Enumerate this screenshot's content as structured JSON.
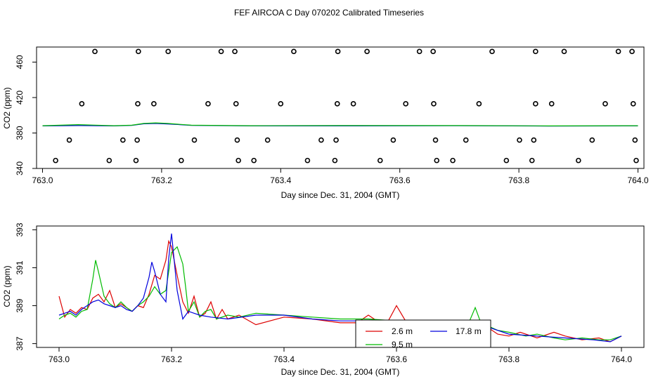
{
  "figure": {
    "title": "FEF AIRCOA C  Day 070202  Calibrated Timeseries"
  },
  "colors": {
    "line_2_6m": "#dd0000",
    "line_9_5m": "#00bb00",
    "line_17_8m": "#0000dd",
    "axis": "#000000"
  },
  "chart_data": [
    {
      "type": "scatter",
      "title": "",
      "xlabel": "Day since Dec. 31, 2004 (GMT)",
      "ylabel": "CO2 (ppm)",
      "xlim": [
        762.99,
        764.01
      ],
      "ylim": [
        340,
        477
      ],
      "xticks": [
        763.0,
        763.2,
        763.4,
        763.6,
        763.8,
        764.0
      ],
      "xtick_labels": [
        "763.0",
        "763.2",
        "763.4",
        "763.6",
        "763.8",
        "764.0"
      ],
      "yticks": [
        340,
        380,
        420,
        460
      ],
      "ytick_labels": [
        "340",
        "380",
        "420",
        "460"
      ],
      "grid": false,
      "points_x": [
        763.088,
        763.161,
        763.211,
        763.3,
        763.323,
        763.422,
        763.496,
        763.545,
        763.633,
        763.656,
        763.755,
        763.828,
        763.876,
        763.967,
        763.99,
        763.066,
        763.16,
        763.187,
        763.278,
        763.325,
        763.4,
        763.495,
        763.522,
        763.61,
        763.657,
        763.733,
        763.828,
        763.855,
        763.945,
        763.992,
        763.045,
        763.135,
        763.159,
        763.255,
        763.327,
        763.378,
        763.468,
        763.493,
        763.589,
        763.66,
        763.711,
        763.801,
        763.825,
        763.923,
        763.995,
        763.022,
        763.112,
        763.157,
        763.233,
        763.329,
        763.355,
        763.445,
        763.491,
        763.567,
        763.662,
        763.689,
        763.779,
        763.822,
        763.9,
        763.997
      ],
      "points_y": [
        472,
        472,
        472,
        472,
        472,
        472,
        472,
        472,
        472,
        472,
        472,
        472,
        472,
        472,
        472,
        413,
        413,
        413,
        413,
        413,
        413,
        413,
        413,
        413,
        413,
        413,
        413,
        413,
        413,
        413,
        372,
        372,
        372,
        372,
        372,
        372,
        372,
        372,
        372,
        372,
        372,
        372,
        372,
        372,
        372,
        349,
        349,
        349,
        349,
        349,
        349,
        349,
        349,
        349,
        349,
        349,
        349,
        349,
        349,
        349
      ],
      "series": [
        {
          "color": "#0000dd",
          "x": [
            763.0,
            763.06,
            763.12,
            763.15,
            763.17,
            763.19,
            763.21,
            763.25,
            763.35,
            763.5,
            763.7,
            763.85,
            764.0
          ],
          "y": [
            388,
            388.4,
            388,
            388.6,
            390.4,
            390.8,
            390.2,
            388.6,
            388,
            388,
            388.2,
            387.8,
            388
          ]
        },
        {
          "color": "#00bb00",
          "x": [
            763.0,
            763.06,
            763.12,
            763.15,
            763.17,
            763.19,
            763.21,
            763.25,
            763.35,
            763.5,
            763.7,
            763.85,
            764.0
          ],
          "y": [
            388.2,
            389.4,
            388.2,
            388.8,
            390.8,
            391.4,
            390.8,
            388.8,
            388.2,
            388.4,
            388.4,
            388,
            388.2
          ]
        }
      ]
    },
    {
      "type": "line",
      "title": "",
      "xlabel": "Day since Dec. 31, 2004 (GMT)",
      "ylabel": "CO2 (ppm)",
      "xlim": [
        762.96,
        764.04
      ],
      "ylim": [
        386.8,
        393.2
      ],
      "xticks": [
        763.0,
        763.2,
        763.4,
        763.6,
        763.8,
        764.0
      ],
      "xtick_labels": [
        "763.0",
        "763.2",
        "763.4",
        "763.6",
        "763.8",
        "764.0"
      ],
      "yticks": [
        387,
        389,
        391,
        393
      ],
      "ytick_labels": [
        "387",
        "389",
        "391",
        "393"
      ],
      "grid": false,
      "legend": {
        "placement": "bottom-center",
        "entries": [
          "2.6 m",
          "9.5 m",
          "17.8 m"
        ]
      },
      "series": [
        {
          "name": "2.6 m",
          "color": "#dd0000",
          "x": [
            763.0,
            763.01,
            763.02,
            763.03,
            763.04,
            763.05,
            763.06,
            763.07,
            763.08,
            763.09,
            763.1,
            763.11,
            763.12,
            763.13,
            763.14,
            763.15,
            763.16,
            763.17,
            763.18,
            763.19,
            763.195,
            763.2,
            763.21,
            763.22,
            763.23,
            763.24,
            763.25,
            763.26,
            763.27,
            763.28,
            763.29,
            763.3,
            763.32,
            763.35,
            763.4,
            763.45,
            763.5,
            763.53,
            763.55,
            763.58,
            763.6,
            763.62,
            763.65,
            763.7,
            763.72,
            763.75,
            763.78,
            763.8,
            763.82,
            763.85,
            763.88,
            763.9,
            763.93,
            763.96,
            763.98,
            764.0
          ],
          "y": [
            389.5,
            388.4,
            388.8,
            388.6,
            388.9,
            388.8,
            389.4,
            389.6,
            389.2,
            389.8,
            388.9,
            389.1,
            388.9,
            388.7,
            389.0,
            388.9,
            389.6,
            390.6,
            390.4,
            391.4,
            392.4,
            392.1,
            390.6,
            389.2,
            388.6,
            389.5,
            388.4,
            388.6,
            389.2,
            388.3,
            388.8,
            388.3,
            388.5,
            388.0,
            388.4,
            388.3,
            388.1,
            388.1,
            388.5,
            387.9,
            389.0,
            388.0,
            388.1,
            388.0,
            388.1,
            388.1,
            387.5,
            387.4,
            387.6,
            387.3,
            387.6,
            387.4,
            387.2,
            387.3,
            387.1,
            387.4
          ]
        },
        {
          "name": "9.5 m",
          "color": "#00bb00",
          "x": [
            763.0,
            763.01,
            763.02,
            763.03,
            763.04,
            763.05,
            763.055,
            763.06,
            763.065,
            763.07,
            763.08,
            763.09,
            763.1,
            763.11,
            763.12,
            763.13,
            763.14,
            763.15,
            763.16,
            763.17,
            763.18,
            763.19,
            763.2,
            763.21,
            763.22,
            763.225,
            763.23,
            763.24,
            763.25,
            763.26,
            763.27,
            763.28,
            763.3,
            763.32,
            763.35,
            763.4,
            763.45,
            763.5,
            763.55,
            763.6,
            763.65,
            763.7,
            763.73,
            763.74,
            763.75,
            763.78,
            763.8,
            763.83,
            763.85,
            763.88,
            763.9,
            763.93,
            763.96,
            763.98,
            764.0
          ],
          "y": [
            388.3,
            388.5,
            388.6,
            388.4,
            388.7,
            388.8,
            389.6,
            390.4,
            391.4,
            390.8,
            389.5,
            389.1,
            388.9,
            389.2,
            388.9,
            388.7,
            389.0,
            389.2,
            389.5,
            390.0,
            389.6,
            389.8,
            391.8,
            392.1,
            391.2,
            390.0,
            388.7,
            389.2,
            388.4,
            388.7,
            388.8,
            388.3,
            388.5,
            388.4,
            388.6,
            388.5,
            388.4,
            388.3,
            388.3,
            388.2,
            388.1,
            388.1,
            388.2,
            388.9,
            388.1,
            387.7,
            387.6,
            387.4,
            387.5,
            387.3,
            387.2,
            387.3,
            387.2,
            387.2,
            387.4
          ]
        },
        {
          "name": "17.8 m",
          "color": "#0000dd",
          "x": [
            763.0,
            763.01,
            763.02,
            763.03,
            763.04,
            763.05,
            763.06,
            763.07,
            763.08,
            763.09,
            763.1,
            763.11,
            763.12,
            763.13,
            763.14,
            763.15,
            763.16,
            763.165,
            763.17,
            763.18,
            763.19,
            763.195,
            763.2,
            763.21,
            763.22,
            763.23,
            763.24,
            763.25,
            763.27,
            763.3,
            763.35,
            763.4,
            763.45,
            763.5,
            763.55,
            763.6,
            763.65,
            763.7,
            763.75,
            763.8,
            763.85,
            763.9,
            763.95,
            763.98,
            764.0
          ],
          "y": [
            388.5,
            388.6,
            388.7,
            388.5,
            388.8,
            389.0,
            389.2,
            389.3,
            389.1,
            389.0,
            388.9,
            389.0,
            388.8,
            388.7,
            389.0,
            389.4,
            390.5,
            391.3,
            390.8,
            389.6,
            389.2,
            391.5,
            392.8,
            389.8,
            388.3,
            388.7,
            388.6,
            388.5,
            388.4,
            388.3,
            388.5,
            388.5,
            388.3,
            388.2,
            388.2,
            388.0,
            388.0,
            388.0,
            388.0,
            387.5,
            387.4,
            387.3,
            387.2,
            387.1,
            387.4
          ]
        }
      ]
    }
  ]
}
